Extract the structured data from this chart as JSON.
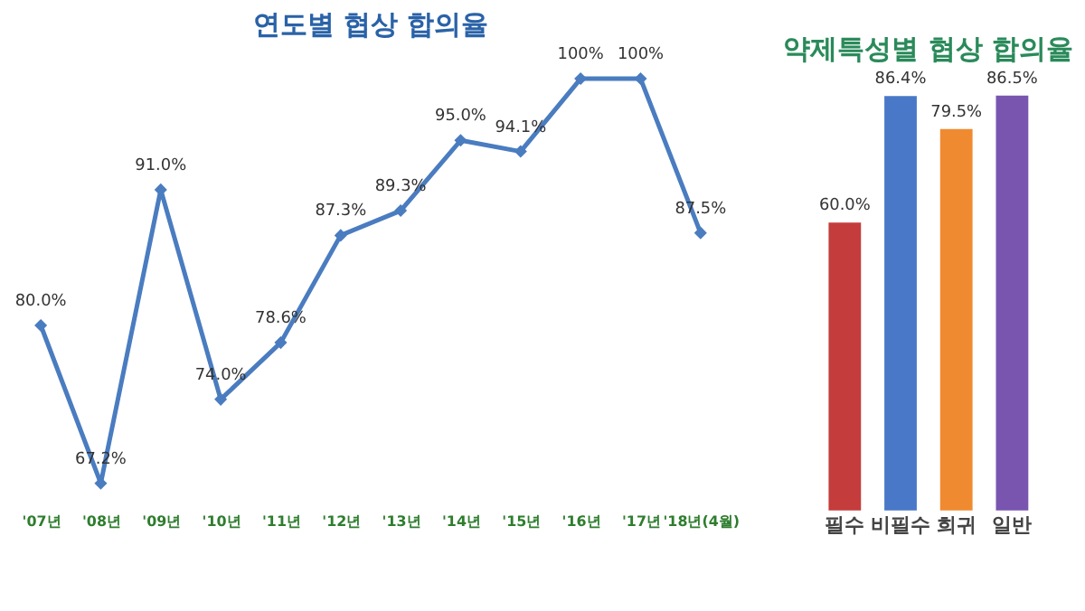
{
  "chart_data": [
    {
      "type": "line",
      "title": "연도별 협상 합의율",
      "categories": [
        "'07년",
        "'08년",
        "'09년",
        "'10년",
        "'11년",
        "'12년",
        "'13년",
        "'14년",
        "'15년",
        "'16년",
        "'17년",
        "'18년(4월)"
      ],
      "series": [
        {
          "color": "#4a7cc0",
          "values": [
            80.0,
            67.2,
            91.0,
            74.0,
            78.6,
            87.3,
            89.3,
            95.0,
            94.1,
            100,
            100,
            87.5
          ],
          "value_labels": [
            "80.0%",
            "67.2%",
            "91.0%",
            "74.0%",
            "78.6%",
            "87.3%",
            "89.3%",
            "95.0%",
            "94.1%",
            "100%",
            "100%",
            "87.5%"
          ]
        }
      ],
      "marker": "diamond",
      "grid": false
    },
    {
      "type": "bar",
      "title": "약제특성별 협상 합의율",
      "categories": [
        "필수",
        "비필수",
        "희귀",
        "일반"
      ],
      "values": [
        60.0,
        86.4,
        79.5,
        86.5
      ],
      "colors": [
        "#c43c3c",
        "#4a78c8",
        "#f08a30",
        "#7a55b0"
      ],
      "value_labels": [
        "60.0%",
        "86.4%",
        "79.5%",
        "86.5%"
      ],
      "grid": false
    }
  ]
}
